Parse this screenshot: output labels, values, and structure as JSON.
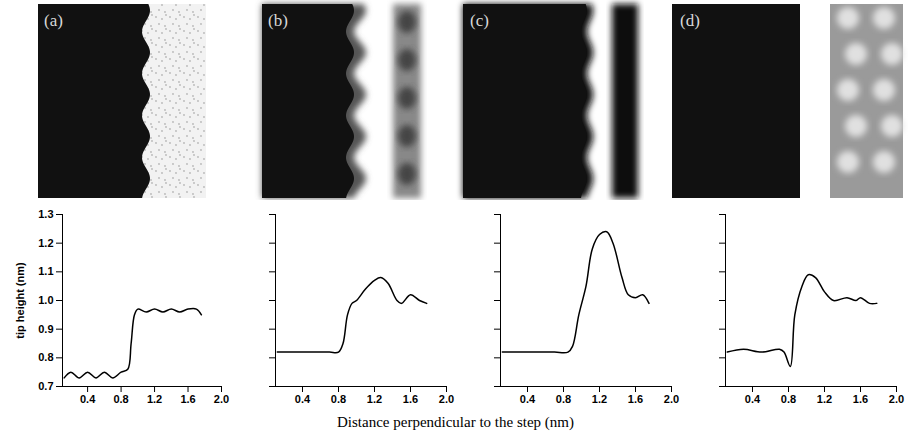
{
  "chart_data": [
    {
      "type": "line",
      "title": "(a)",
      "ylabel": "tip height (nm)",
      "xlabel": "Distance perpendicular to the step (nm)",
      "color": "#000000",
      "x": [
        0.12,
        0.2,
        0.3,
        0.4,
        0.5,
        0.6,
        0.7,
        0.8,
        0.88,
        0.92,
        0.96,
        1.0,
        1.1,
        1.2,
        1.3,
        1.4,
        1.5,
        1.6,
        1.7,
        1.76
      ],
      "values": [
        0.73,
        0.75,
        0.73,
        0.75,
        0.73,
        0.75,
        0.73,
        0.75,
        0.76,
        0.85,
        0.95,
        0.97,
        0.96,
        0.97,
        0.96,
        0.97,
        0.96,
        0.97,
        0.97,
        0.95
      ],
      "xlim": [
        0.1,
        2.0
      ],
      "xticks": [
        0.4,
        0.8,
        1.2,
        1.6,
        {
          "value": 2.0,
          "label": "2.0"
        }
      ],
      "ylim": [
        0.7,
        1.3
      ],
      "yticks": [
        0.7,
        0.8,
        0.9,
        {
          "value": 1.0,
          "label": "1.0"
        },
        1.1,
        1.2,
        1.3
      ]
    },
    {
      "type": "line",
      "title": "(b)",
      "color": "#000000",
      "tick_labels": "x",
      "x": [
        0.12,
        0.3,
        0.5,
        0.7,
        0.8,
        0.85,
        0.9,
        0.95,
        1.0,
        1.1,
        1.2,
        1.27,
        1.35,
        1.45,
        1.5,
        1.6,
        1.7,
        1.78
      ],
      "values": [
        0.82,
        0.82,
        0.82,
        0.82,
        0.82,
        0.85,
        0.95,
        0.99,
        1.0,
        1.04,
        1.07,
        1.08,
        1.06,
        1.0,
        0.99,
        1.02,
        1.0,
        0.99
      ],
      "xlim": [
        0.1,
        2.0
      ],
      "xticks": [
        0.4,
        0.8,
        1.2,
        1.6,
        {
          "value": 2.0,
          "label": "2.0"
        }
      ],
      "ylim": [
        0.7,
        1.3
      ],
      "yticks": [
        0.7,
        0.8,
        0.9,
        {
          "value": 1.0,
          "label": "1.0"
        },
        1.1,
        1.2,
        1.3
      ]
    },
    {
      "type": "line",
      "title": "(c)",
      "color": "#000000",
      "tick_labels": "x",
      "x": [
        0.12,
        0.3,
        0.5,
        0.7,
        0.85,
        0.9,
        0.97,
        1.05,
        1.12,
        1.2,
        1.28,
        1.35,
        1.45,
        1.52,
        1.6,
        1.68,
        1.75
      ],
      "values": [
        0.82,
        0.82,
        0.82,
        0.82,
        0.82,
        0.84,
        0.95,
        1.05,
        1.18,
        1.23,
        1.24,
        1.2,
        1.08,
        1.02,
        1.01,
        1.02,
        0.99
      ],
      "xlim": [
        0.1,
        2.0
      ],
      "xticks": [
        0.4,
        0.8,
        1.2,
        1.6,
        {
          "value": 2.0,
          "label": "2.0"
        }
      ],
      "ylim": [
        0.7,
        1.3
      ],
      "yticks": [
        0.7,
        0.8,
        0.9,
        {
          "value": 1.0,
          "label": "1.0"
        },
        1.1,
        1.2,
        1.3
      ]
    },
    {
      "type": "line",
      "title": "(d)",
      "color": "#000000",
      "tick_labels": "x",
      "x": [
        0.12,
        0.3,
        0.5,
        0.7,
        0.75,
        0.82,
        0.87,
        0.95,
        1.02,
        1.1,
        1.2,
        1.3,
        1.45,
        1.55,
        1.6,
        1.7,
        1.78
      ],
      "values": [
        0.82,
        0.83,
        0.82,
        0.83,
        0.82,
        0.77,
        0.95,
        1.05,
        1.09,
        1.08,
        1.03,
        1.0,
        1.01,
        1.0,
        1.01,
        0.99,
        0.99
      ],
      "xlim": [
        0.1,
        2.0
      ],
      "xticks": [
        0.4,
        0.8,
        1.2,
        1.6,
        {
          "value": 2.0,
          "label": "2.0"
        }
      ],
      "ylim": [
        0.7,
        1.3
      ],
      "yticks": [
        0.7,
        0.8,
        0.9,
        {
          "value": 1.0,
          "label": "1.0"
        },
        1.1,
        1.2,
        1.3
      ]
    }
  ]
}
